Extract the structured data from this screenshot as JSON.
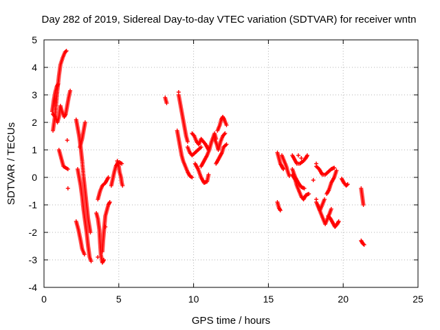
{
  "chart_data": {
    "type": "scatter",
    "title": "Day 282 of 2019, Sidereal Day-to-day VTEC variation (SDTVAR) for receiver wntn",
    "xlabel": "GPS time / hours",
    "ylabel": "SDTVAR / TECUs",
    "xlim": [
      0,
      25
    ],
    "ylim": [
      -4,
      5
    ],
    "xticks": [
      0,
      5,
      10,
      15,
      20,
      25
    ],
    "yticks": [
      -4,
      -3,
      -2,
      -1,
      0,
      1,
      2,
      3,
      4,
      5
    ],
    "grid": true,
    "marker": "+",
    "color": "#ff0000",
    "tracks": [
      [
        [
          0.6,
          1.7
        ],
        [
          0.75,
          2.3
        ],
        [
          0.9,
          3.2
        ],
        [
          1.0,
          3.7
        ],
        [
          1.1,
          4.1
        ],
        [
          1.25,
          4.35
        ],
        [
          1.4,
          4.55
        ],
        [
          1.5,
          4.6
        ]
      ],
      [
        [
          0.55,
          2.4
        ],
        [
          0.65,
          2.8
        ],
        [
          0.75,
          3.1
        ],
        [
          0.85,
          3.3
        ],
        [
          0.95,
          3.4
        ]
      ],
      [
        [
          0.6,
          2.3
        ],
        [
          0.75,
          2.2
        ],
        [
          0.9,
          2.0
        ],
        [
          1.0,
          2.2
        ],
        [
          1.1,
          2.6
        ],
        [
          1.2,
          2.4
        ],
        [
          1.35,
          2.2
        ],
        [
          1.45,
          2.3
        ],
        [
          1.55,
          2.6
        ],
        [
          1.65,
          2.9
        ],
        [
          1.75,
          3.15
        ]
      ],
      [
        [
          1.0,
          1.0
        ],
        [
          1.1,
          0.8
        ],
        [
          1.2,
          0.6
        ],
        [
          1.3,
          0.4
        ],
        [
          1.45,
          0.35
        ],
        [
          1.6,
          0.3
        ]
      ],
      [
        [
          2.15,
          2.1
        ],
        [
          2.25,
          1.8
        ],
        [
          2.35,
          1.5
        ],
        [
          2.45,
          1.1
        ],
        [
          2.55,
          0.6
        ],
        [
          2.65,
          0.0
        ],
        [
          2.75,
          -0.5
        ],
        [
          2.85,
          -1.0
        ],
        [
          2.95,
          -1.5
        ],
        [
          3.1,
          -2.0
        ]
      ],
      [
        [
          2.25,
          0.3
        ],
        [
          2.35,
          0.0
        ],
        [
          2.45,
          -0.3
        ],
        [
          2.55,
          -0.7
        ],
        [
          2.65,
          -1.2
        ],
        [
          2.75,
          -1.6
        ],
        [
          2.85,
          -2.0
        ],
        [
          2.95,
          -2.5
        ],
        [
          3.05,
          -2.9
        ],
        [
          3.15,
          -3.05
        ]
      ],
      [
        [
          2.15,
          -1.6
        ],
        [
          2.3,
          -1.9
        ],
        [
          2.45,
          -2.3
        ],
        [
          2.55,
          -2.6
        ],
        [
          2.7,
          -2.8
        ]
      ],
      [
        [
          2.4,
          1.1
        ],
        [
          2.55,
          1.4
        ],
        [
          2.65,
          1.7
        ],
        [
          2.75,
          2.0
        ]
      ],
      [
        [
          3.5,
          -1.3
        ],
        [
          3.6,
          -1.5
        ],
        [
          3.7,
          -1.9
        ],
        [
          3.75,
          -2.4
        ],
        [
          3.8,
          -2.8
        ],
        [
          3.9,
          -3.1
        ],
        [
          4.0,
          -3.0
        ]
      ],
      [
        [
          3.9,
          -2.7
        ],
        [
          3.95,
          -2.3
        ],
        [
          4.0,
          -2.0
        ],
        [
          4.05,
          -1.7
        ],
        [
          4.1,
          -1.4
        ],
        [
          4.2,
          -1.2
        ],
        [
          4.3,
          -1.0
        ],
        [
          4.4,
          -0.9
        ]
      ],
      [
        [
          3.6,
          -0.8
        ],
        [
          3.75,
          -0.5
        ],
        [
          3.9,
          -0.3
        ],
        [
          4.1,
          -0.2
        ],
        [
          4.3,
          0.0
        ]
      ],
      [
        [
          4.9,
          0.6
        ],
        [
          5.0,
          0.4
        ],
        [
          5.05,
          0.2
        ],
        [
          5.15,
          0.0
        ],
        [
          5.2,
          -0.2
        ],
        [
          5.25,
          -0.3
        ]
      ],
      [
        [
          4.5,
          -0.3
        ],
        [
          4.6,
          -0.05
        ],
        [
          4.7,
          0.2
        ],
        [
          4.8,
          0.4
        ],
        [
          4.9,
          0.5
        ],
        [
          5.05,
          0.55
        ],
        [
          5.2,
          0.5
        ]
      ],
      [
        [
          8.1,
          2.9
        ],
        [
          8.2,
          2.7
        ]
      ],
      [
        [
          9.0,
          3.0
        ],
        [
          9.1,
          2.7
        ],
        [
          9.2,
          2.4
        ],
        [
          9.3,
          2.1
        ],
        [
          9.4,
          1.8
        ],
        [
          9.5,
          1.5
        ],
        [
          9.6,
          1.3
        ]
      ],
      [
        [
          8.9,
          1.7
        ],
        [
          9.0,
          1.4
        ],
        [
          9.1,
          1.1
        ],
        [
          9.2,
          0.8
        ],
        [
          9.3,
          0.6
        ],
        [
          9.45,
          0.4
        ],
        [
          9.6,
          0.2
        ],
        [
          9.75,
          0.05
        ],
        [
          9.9,
          0.0
        ]
      ],
      [
        [
          9.6,
          1.1
        ],
        [
          9.75,
          0.9
        ],
        [
          9.9,
          0.8
        ],
        [
          10.1,
          0.9
        ],
        [
          10.3,
          1.0
        ],
        [
          10.5,
          1.1
        ]
      ],
      [
        [
          9.9,
          1.6
        ],
        [
          10.05,
          1.5
        ],
        [
          10.2,
          1.3
        ],
        [
          10.35,
          1.2
        ],
        [
          10.5,
          1.4
        ],
        [
          10.65,
          1.3
        ],
        [
          10.8,
          1.2
        ],
        [
          11.0,
          1.0
        ]
      ],
      [
        [
          10.1,
          0.5
        ],
        [
          10.3,
          0.3
        ],
        [
          10.5,
          0.0
        ],
        [
          10.7,
          -0.2
        ],
        [
          10.9,
          -0.15
        ],
        [
          11.0,
          0.1
        ]
      ],
      [
        [
          10.5,
          0.4
        ],
        [
          10.7,
          0.6
        ],
        [
          10.9,
          0.8
        ],
        [
          11.05,
          1.0
        ],
        [
          11.2,
          1.3
        ],
        [
          11.4,
          1.6
        ],
        [
          11.5,
          1.4
        ]
      ],
      [
        [
          11.6,
          1.7
        ],
        [
          11.75,
          1.9
        ],
        [
          11.85,
          2.1
        ],
        [
          11.95,
          2.2
        ],
        [
          12.05,
          2.1
        ],
        [
          12.2,
          1.9
        ]
      ],
      [
        [
          11.4,
          1.4
        ],
        [
          11.55,
          1.2
        ],
        [
          11.65,
          1.0
        ],
        [
          11.8,
          1.3
        ],
        [
          11.95,
          1.5
        ],
        [
          12.1,
          1.6
        ]
      ],
      [
        [
          11.5,
          0.5
        ],
        [
          11.7,
          0.7
        ],
        [
          11.9,
          0.9
        ],
        [
          12.0,
          1.1
        ],
        [
          12.2,
          1.2
        ]
      ],
      [
        [
          15.6,
          0.9
        ],
        [
          15.7,
          0.7
        ],
        [
          15.8,
          0.5
        ],
        [
          15.9,
          0.4
        ],
        [
          16.0,
          0.3
        ]
      ],
      [
        [
          15.6,
          -0.9
        ],
        [
          15.7,
          -1.1
        ],
        [
          15.8,
          -1.2
        ]
      ],
      [
        [
          15.9,
          0.8
        ],
        [
          16.05,
          0.6
        ],
        [
          16.2,
          0.4
        ],
        [
          16.3,
          0.2
        ],
        [
          16.4,
          0.05
        ]
      ],
      [
        [
          16.6,
          0.3
        ],
        [
          16.8,
          0.0
        ],
        [
          17.0,
          -0.2
        ],
        [
          17.2,
          -0.35
        ],
        [
          17.4,
          -0.4
        ]
      ],
      [
        [
          16.6,
          0.1
        ],
        [
          16.8,
          -0.1
        ],
        [
          16.9,
          -0.3
        ],
        [
          17.05,
          -0.5
        ],
        [
          17.2,
          -0.7
        ],
        [
          17.35,
          -0.8
        ],
        [
          17.5,
          -0.65
        ],
        [
          17.7,
          -0.6
        ]
      ],
      [
        [
          16.6,
          0.8
        ],
        [
          16.9,
          0.5
        ],
        [
          17.1,
          0.5
        ],
        [
          17.35,
          0.6
        ],
        [
          17.5,
          0.7
        ],
        [
          17.6,
          0.8
        ]
      ],
      [
        [
          18.2,
          0.4
        ],
        [
          18.4,
          0.3
        ],
        [
          18.6,
          0.1
        ],
        [
          18.8,
          0.1
        ],
        [
          19.0,
          0.2
        ],
        [
          19.2,
          0.3
        ],
        [
          19.4,
          0.35
        ]
      ],
      [
        [
          18.2,
          -0.9
        ],
        [
          18.35,
          -1.1
        ],
        [
          18.5,
          -1.3
        ],
        [
          18.65,
          -1.5
        ],
        [
          18.8,
          -1.7
        ],
        [
          18.95,
          -1.5
        ],
        [
          19.1,
          -1.3
        ],
        [
          19.2,
          -1.15
        ]
      ],
      [
        [
          18.3,
          -1.0
        ],
        [
          18.45,
          -1.2
        ],
        [
          18.6,
          -1.0
        ],
        [
          18.75,
          -0.8
        ]
      ],
      [
        [
          18.9,
          -0.6
        ],
        [
          19.05,
          -0.45
        ],
        [
          19.2,
          -0.2
        ],
        [
          19.4,
          0.0
        ],
        [
          19.55,
          0.25
        ]
      ],
      [
        [
          19.0,
          -1.4
        ],
        [
          19.15,
          -1.5
        ],
        [
          19.3,
          -1.65
        ],
        [
          19.45,
          -1.8
        ],
        [
          19.6,
          -1.7
        ],
        [
          19.7,
          -1.6
        ]
      ],
      [
        [
          19.9,
          -0.05
        ],
        [
          20.05,
          -0.2
        ],
        [
          20.2,
          -0.3
        ],
        [
          20.3,
          -0.25
        ]
      ],
      [
        [
          21.2,
          -0.4
        ],
        [
          21.25,
          -0.6
        ],
        [
          21.3,
          -0.8
        ],
        [
          21.35,
          -1.0
        ]
      ],
      [
        [
          21.2,
          -2.3
        ],
        [
          21.3,
          -2.4
        ],
        [
          21.4,
          -2.45
        ]
      ]
    ],
    "isolated": [
      [
        1.6,
        -0.4
      ],
      [
        1.55,
        1.35
      ],
      [
        3.6,
        -2.9
      ],
      [
        4.1,
        -1.8
      ],
      [
        9.0,
        3.1
      ],
      [
        17.0,
        0.8
      ],
      [
        17.2,
        0.7
      ],
      [
        18.2,
        -0.8
      ],
      [
        18.4,
        -1.1
      ],
      [
        18.2,
        0.5
      ],
      [
        18.0,
        -0.1
      ]
    ]
  }
}
